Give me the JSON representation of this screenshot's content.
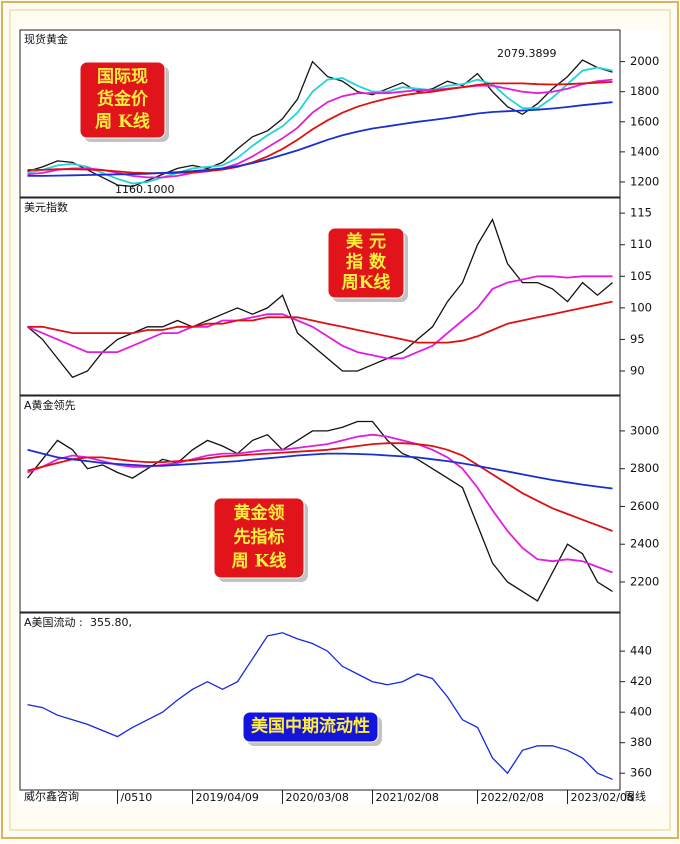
{
  "source": "威尔鑫咨询",
  "period": "周线",
  "chart_data": [
    {
      "type": "line",
      "title": "现货黄金",
      "ylim": [
        1100,
        2210
      ],
      "yticks": [
        1200,
        1400,
        1600,
        1800,
        2000
      ],
      "annotations": [
        "2079.3899",
        "1160.1000"
      ],
      "label_box": {
        "lines": [
          "国际现",
          "货金价",
          "周  K线"
        ],
        "color": "#e0141a"
      },
      "series": [
        {
          "color": "#111111",
          "values": [
            1270,
            1300,
            1340,
            1330,
            1280,
            1230,
            1180,
            1170,
            1210,
            1250,
            1290,
            1310,
            1290,
            1330,
            1420,
            1500,
            1540,
            1620,
            1750,
            2000,
            1900,
            1870,
            1800,
            1780,
            1820,
            1860,
            1800,
            1820,
            1870,
            1840,
            1920,
            1800,
            1700,
            1650,
            1720,
            1820,
            1900,
            2010,
            1960,
            1930
          ]
        },
        {
          "color": "#22d3d8",
          "values": [
            1260,
            1280,
            1310,
            1320,
            1300,
            1260,
            1220,
            1190,
            1200,
            1230,
            1260,
            1290,
            1300,
            1310,
            1360,
            1440,
            1510,
            1570,
            1660,
            1800,
            1880,
            1890,
            1840,
            1800,
            1800,
            1830,
            1820,
            1810,
            1840,
            1850,
            1880,
            1850,
            1760,
            1690,
            1690,
            1760,
            1850,
            1940,
            1960,
            1940
          ]
        },
        {
          "color": "#e01ee0",
          "values": [
            1250,
            1260,
            1280,
            1290,
            1290,
            1280,
            1260,
            1240,
            1230,
            1230,
            1240,
            1260,
            1270,
            1290,
            1320,
            1370,
            1430,
            1490,
            1560,
            1660,
            1730,
            1770,
            1790,
            1790,
            1790,
            1800,
            1810,
            1810,
            1820,
            1830,
            1840,
            1840,
            1820,
            1800,
            1790,
            1800,
            1820,
            1850,
            1870,
            1880
          ]
        },
        {
          "color": "#dd1111",
          "values": [
            1280,
            1280,
            1285,
            1285,
            1282,
            1278,
            1270,
            1262,
            1258,
            1258,
            1260,
            1265,
            1272,
            1282,
            1300,
            1330,
            1370,
            1420,
            1480,
            1550,
            1610,
            1660,
            1700,
            1730,
            1755,
            1775,
            1790,
            1800,
            1815,
            1830,
            1845,
            1855,
            1855,
            1855,
            1850,
            1848,
            1850,
            1855,
            1860,
            1865
          ]
        },
        {
          "color": "#1a2fcf",
          "values": [
            1240,
            1240,
            1242,
            1244,
            1246,
            1248,
            1250,
            1252,
            1255,
            1260,
            1265,
            1272,
            1280,
            1290,
            1305,
            1325,
            1350,
            1380,
            1410,
            1445,
            1480,
            1510,
            1535,
            1555,
            1570,
            1585,
            1600,
            1612,
            1625,
            1640,
            1655,
            1665,
            1670,
            1675,
            1680,
            1688,
            1698,
            1710,
            1720,
            1730
          ]
        }
      ]
    },
    {
      "type": "line",
      "title": "美元指数",
      "ylim": [
        86.2,
        117.4
      ],
      "yticks": [
        90,
        95,
        100,
        105,
        110,
        115
      ],
      "label_box": {
        "lines": [
          "美  元",
          "指  数",
          "周K线"
        ],
        "color": "#e0141a"
      },
      "series": [
        {
          "color": "#111111",
          "values": [
            97,
            95,
            92,
            89,
            90,
            93,
            95,
            96,
            97,
            97,
            98,
            97,
            98,
            99,
            100,
            99,
            100,
            102,
            96,
            94,
            92,
            90,
            90,
            91,
            92,
            93,
            95,
            97,
            101,
            104,
            110,
            114,
            107,
            104,
            104,
            103,
            101,
            104,
            102,
            104
          ]
        },
        {
          "color": "#e01ee0",
          "values": [
            97,
            96,
            95,
            94,
            93,
            93,
            93,
            94,
            95,
            96,
            96,
            97,
            97,
            98,
            98,
            98.5,
            99,
            99,
            98,
            97,
            95.5,
            94,
            93,
            92.5,
            92,
            92,
            93,
            94,
            96,
            98,
            100,
            103,
            104,
            104.5,
            105,
            105,
            104.8,
            105,
            105,
            105
          ]
        },
        {
          "color": "#dd1111",
          "values": [
            97,
            97,
            96.5,
            96,
            96,
            96,
            96,
            96,
            96.5,
            96.5,
            97,
            97,
            97.5,
            97.5,
            98,
            98,
            98.5,
            98.5,
            98.5,
            98,
            97.5,
            97,
            96.5,
            96,
            95.5,
            95,
            94.5,
            94.5,
            94.5,
            94.8,
            95.5,
            96.5,
            97.5,
            98,
            98.5,
            99,
            99.5,
            100,
            100.5,
            101
          ]
        }
      ]
    },
    {
      "type": "line",
      "title": "A黄金领先",
      "ylim": [
        2041,
        3185
      ],
      "yticks": [
        2200,
        2400,
        2600,
        2800,
        3000
      ],
      "label_box": {
        "lines": [
          "黄金领",
          "先指标",
          "周  K线"
        ],
        "color": "#e0141a"
      },
      "series": [
        {
          "color": "#111111",
          "values": [
            2750,
            2850,
            2950,
            2900,
            2800,
            2820,
            2780,
            2750,
            2800,
            2850,
            2830,
            2900,
            2950,
            2920,
            2880,
            2950,
            2980,
            2900,
            2950,
            3000,
            3000,
            3020,
            3050,
            3050,
            2950,
            2880,
            2850,
            2800,
            2750,
            2700,
            2500,
            2300,
            2200,
            2150,
            2100,
            2250,
            2400,
            2350,
            2200,
            2150
          ]
        },
        {
          "color": "#e01ee0",
          "values": [
            2780,
            2810,
            2850,
            2870,
            2860,
            2840,
            2820,
            2810,
            2810,
            2820,
            2830,
            2850,
            2870,
            2880,
            2880,
            2890,
            2900,
            2900,
            2910,
            2920,
            2930,
            2950,
            2970,
            2980,
            2970,
            2950,
            2930,
            2900,
            2860,
            2800,
            2700,
            2580,
            2470,
            2380,
            2320,
            2310,
            2320,
            2310,
            2280,
            2250
          ]
        },
        {
          "color": "#dd1111",
          "values": [
            2790,
            2810,
            2830,
            2850,
            2860,
            2860,
            2850,
            2840,
            2835,
            2835,
            2840,
            2845,
            2855,
            2865,
            2870,
            2875,
            2880,
            2885,
            2890,
            2895,
            2900,
            2910,
            2920,
            2930,
            2935,
            2935,
            2930,
            2920,
            2900,
            2870,
            2820,
            2770,
            2720,
            2670,
            2630,
            2590,
            2560,
            2530,
            2500,
            2470
          ]
        },
        {
          "color": "#1a2fcf",
          "values": [
            2900,
            2880,
            2860,
            2850,
            2840,
            2830,
            2825,
            2820,
            2815,
            2815,
            2820,
            2825,
            2830,
            2835,
            2840,
            2848,
            2855,
            2862,
            2870,
            2875,
            2880,
            2880,
            2878,
            2875,
            2870,
            2865,
            2860,
            2850,
            2840,
            2828,
            2815,
            2800,
            2785,
            2770,
            2755,
            2740,
            2728,
            2716,
            2705,
            2695
          ]
        }
      ]
    },
    {
      "type": "line",
      "title": "A美国流动 :",
      "header_value": "355.80,",
      "ylim": [
        349,
        465
      ],
      "yticks": [
        360,
        380,
        400,
        420,
        440
      ],
      "label_box": {
        "lines": [
          "美国中期流动性"
        ],
        "color": "#1414e0"
      },
      "categories": [
        null,
        null,
        null,
        null,
        null,
        null,
        "/0510",
        null,
        null,
        null,
        null,
        "2019/04/09",
        null,
        null,
        null,
        null,
        null,
        "2020/03/08",
        null,
        null,
        null,
        null,
        null,
        "2021/02/08",
        null,
        null,
        null,
        null,
        null,
        null,
        "2022/02/08",
        null,
        null,
        null,
        null,
        null,
        "2023/02/08",
        null,
        null,
        null
      ],
      "series": [
        {
          "color": "#1428e0",
          "values": [
            405,
            403,
            398,
            395,
            392,
            388,
            384,
            390,
            395,
            400,
            408,
            415,
            420,
            415,
            420,
            435,
            450,
            452,
            448,
            445,
            440,
            430,
            425,
            420,
            418,
            420,
            425,
            422,
            410,
            395,
            390,
            370,
            360,
            375,
            378,
            378,
            375,
            370,
            360,
            356
          ]
        }
      ]
    }
  ]
}
